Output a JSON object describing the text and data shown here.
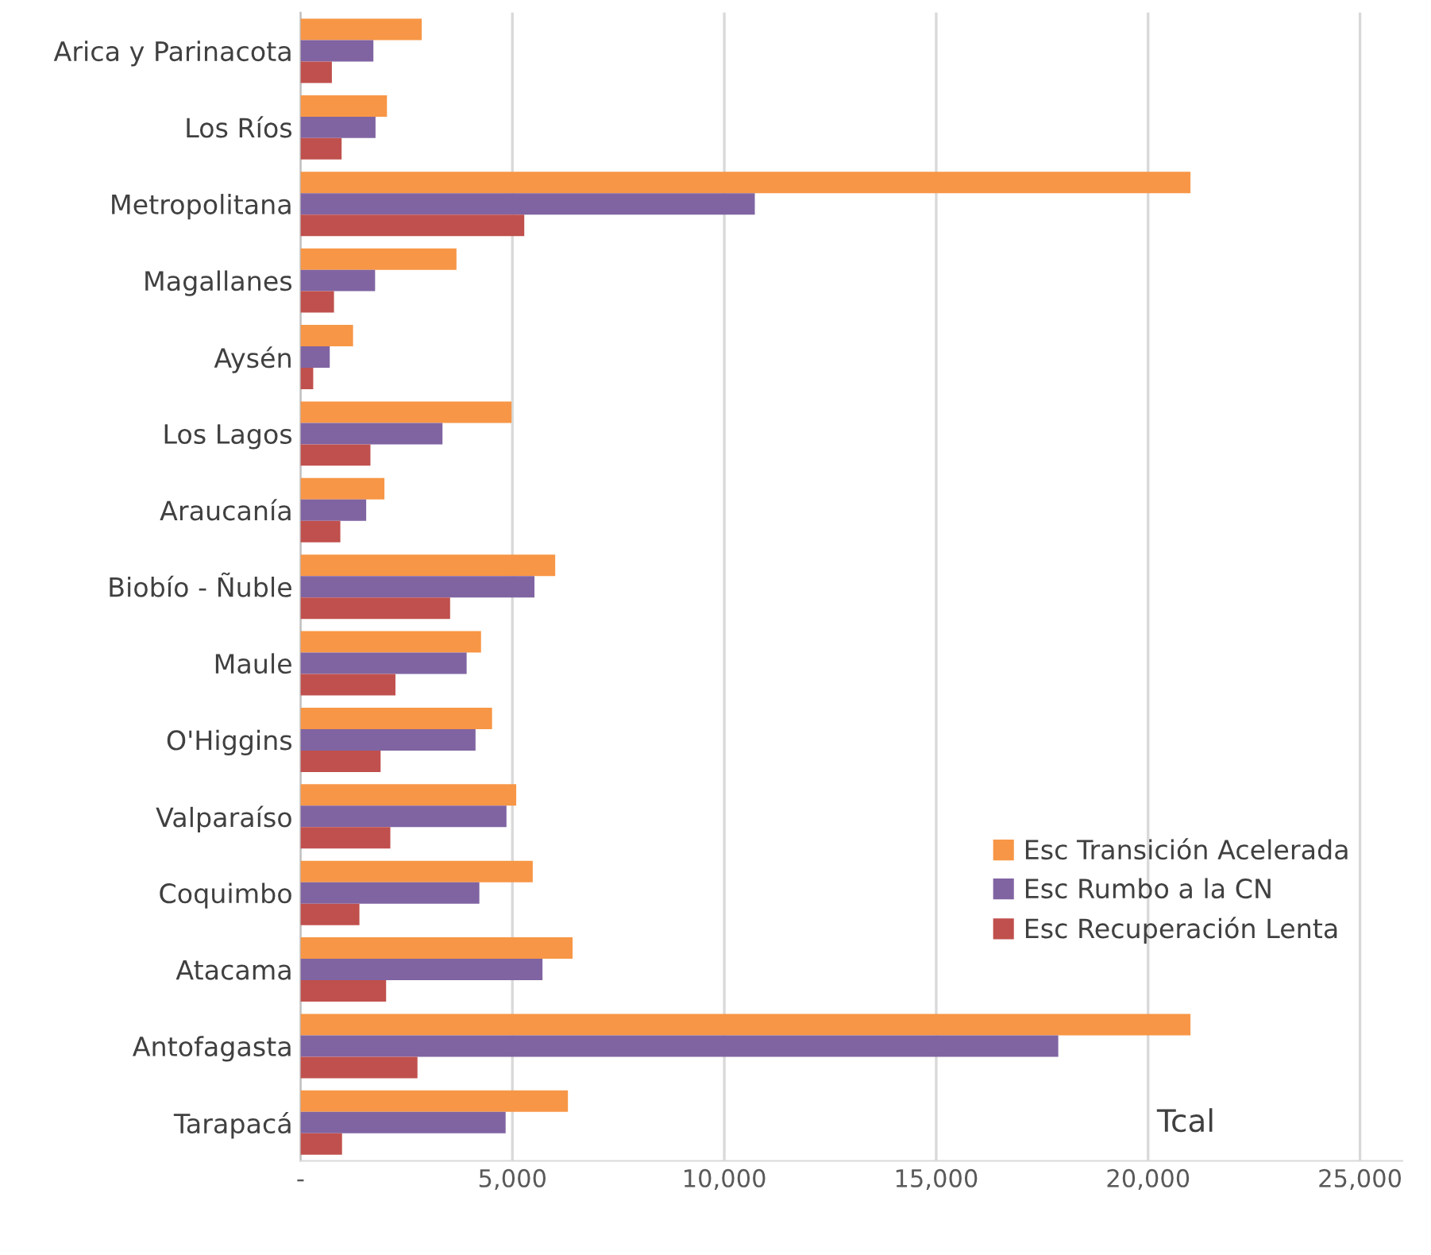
{
  "chart_data": {
    "type": "bar",
    "orientation": "horizontal",
    "xlabel": "Tcal",
    "categories": [
      "Arica y Parinacota",
      "Los Ríos",
      "Metropolitana",
      "Magallanes",
      "Aysén",
      "Los Lagos",
      "Araucanía",
      "Biobío - Ñuble",
      "Maule",
      "O'Higgins",
      "Valparaíso",
      "Coquimbo",
      "Atacama",
      "Antofagasta",
      "Tarapacá"
    ],
    "series": [
      {
        "name": "Esc Transición Acelerada",
        "color": "#f79646",
        "values": [
          2860,
          2040,
          21000,
          3680,
          1240,
          4980,
          1980,
          6010,
          4260,
          4520,
          5090,
          5480,
          6420,
          21000,
          6310
        ]
      },
      {
        "name": "Esc Rumbo a la CN",
        "color": "#8064a2",
        "values": [
          1720,
          1770,
          10720,
          1760,
          690,
          3350,
          1550,
          5520,
          3920,
          4130,
          4860,
          4220,
          5710,
          17880,
          4840
        ]
      },
      {
        "name": "Esc Recuperación Lenta",
        "color": "#c0504d",
        "values": [
          740,
          970,
          5280,
          790,
          300,
          1650,
          940,
          3530,
          2240,
          1890,
          2120,
          1390,
          2020,
          2760,
          980
        ]
      }
    ],
    "xlim": [
      0,
      26000
    ],
    "xticks": [
      {
        "value": 0,
        "label": "-"
      },
      {
        "value": 5000,
        "label": "5,000"
      },
      {
        "value": 10000,
        "label": "10,000"
      },
      {
        "value": 15000,
        "label": "15,000"
      },
      {
        "value": 20000,
        "label": "20,000"
      },
      {
        "value": 25000,
        "label": "25,000"
      }
    ],
    "grid": "x",
    "legend": "bottom right"
  }
}
